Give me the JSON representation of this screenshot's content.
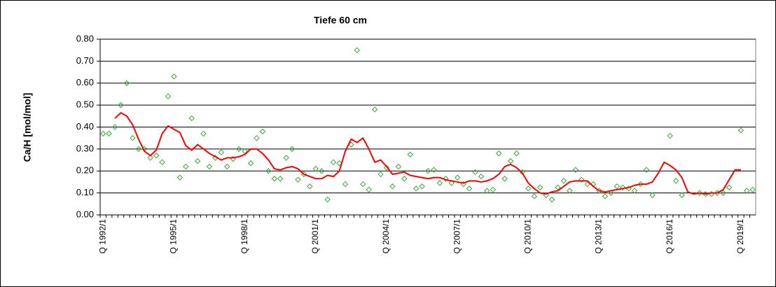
{
  "chart_data": {
    "type": "line",
    "title": "Tiefe  60 cm",
    "y_label": "Ca/H [mol/mol]",
    "categories": [
      "Q 1992/1",
      null,
      null,
      null,
      null,
      null,
      null,
      null,
      null,
      null,
      null,
      null,
      "Q 1995/1",
      null,
      null,
      null,
      null,
      null,
      null,
      null,
      null,
      null,
      null,
      null,
      "Q 1998/1",
      null,
      null,
      null,
      null,
      null,
      null,
      null,
      null,
      null,
      null,
      null,
      "Q 2001/1",
      null,
      null,
      null,
      null,
      null,
      null,
      null,
      null,
      null,
      null,
      null,
      "Q 2004/1",
      null,
      null,
      null,
      null,
      null,
      null,
      null,
      null,
      null,
      null,
      null,
      "Q 2007/1",
      null,
      null,
      null,
      null,
      null,
      null,
      null,
      null,
      null,
      null,
      null,
      "Q 2010/1",
      null,
      null,
      null,
      null,
      null,
      null,
      null,
      null,
      null,
      null,
      null,
      "Q 2013/1",
      null,
      null,
      null,
      null,
      null,
      null,
      null,
      null,
      null,
      null,
      null,
      "Q 2016/1",
      null,
      null,
      null,
      null,
      null,
      null,
      null,
      null,
      null,
      null,
      null,
      "Q 2019/1",
      null,
      null
    ],
    "series": [
      {
        "type": "scatter",
        "color": "#33aa33",
        "values": [
          0.37,
          0.37,
          0.4,
          0.5,
          0.6,
          0.35,
          0.3,
          0.3,
          0.26,
          0.27,
          0.24,
          0.54,
          0.63,
          0.17,
          0.22,
          0.44,
          0.245,
          0.37,
          0.22,
          0.26,
          0.285,
          0.22,
          0.255,
          0.3,
          0.29,
          0.235,
          0.35,
          0.38,
          0.2,
          0.165,
          0.165,
          0.26,
          0.3,
          0.16,
          0.185,
          0.13,
          0.21,
          0.2,
          0.07,
          0.24,
          0.235,
          0.14,
          0.32,
          0.75,
          0.14,
          0.115,
          0.48,
          0.185,
          0.215,
          0.13,
          0.22,
          0.165,
          0.275,
          0.12,
          0.13,
          0.2,
          0.205,
          0.145,
          0.165,
          0.145,
          0.17,
          0.14,
          0.12,
          0.195,
          0.175,
          0.11,
          0.115,
          0.28,
          0.165,
          0.245,
          0.28,
          0.195,
          0.12,
          0.085,
          0.125,
          0.09,
          0.07,
          0.125,
          0.155,
          0.11,
          0.205,
          0.16,
          0.14,
          0.14,
          0.11,
          0.085,
          0.1,
          0.13,
          0.125,
          0.12,
          0.11,
          0.14,
          0.205,
          0.09,
          null,
          null,
          0.36,
          0.155,
          0.09,
          null,
          null,
          0.1,
          0.095,
          0.095,
          0.1,
          0.1,
          0.125,
          null,
          0.385,
          0.11,
          0.115
        ]
      },
      {
        "type": "line",
        "color": "#ff0000",
        "values": [
          null,
          null,
          0.44,
          0.465,
          0.45,
          0.41,
          0.345,
          0.29,
          0.27,
          0.295,
          0.37,
          0.405,
          0.39,
          0.375,
          0.315,
          0.295,
          0.32,
          0.3,
          0.28,
          0.265,
          0.25,
          0.26,
          0.26,
          0.265,
          0.275,
          0.3,
          0.3,
          0.28,
          0.25,
          0.21,
          0.205,
          0.215,
          0.22,
          0.21,
          0.185,
          0.175,
          0.165,
          0.165,
          0.18,
          0.175,
          0.2,
          0.29,
          0.345,
          0.33,
          0.35,
          0.3,
          0.24,
          0.25,
          0.22,
          0.185,
          0.19,
          0.195,
          0.18,
          0.175,
          0.17,
          0.165,
          0.17,
          0.17,
          0.16,
          0.155,
          0.15,
          0.145,
          0.155,
          0.155,
          0.15,
          0.155,
          0.165,
          0.185,
          0.22,
          0.23,
          0.215,
          0.19,
          0.145,
          0.12,
          0.1,
          0.095,
          0.105,
          0.11,
          0.13,
          0.15,
          0.155,
          0.155,
          0.155,
          0.13,
          0.11,
          0.105,
          0.11,
          0.115,
          0.12,
          0.125,
          0.135,
          0.14,
          0.14,
          0.15,
          0.19,
          0.24,
          0.225,
          0.205,
          0.17,
          0.105,
          0.095,
          0.1,
          0.095,
          0.1,
          0.1,
          0.115,
          0.16,
          0.205,
          0.205,
          null,
          null
        ]
      }
    ],
    "ylim": [
      0,
      0.8
    ],
    "yticks": [
      {
        "value": 0,
        "label": "0.00"
      },
      {
        "value": 0.1,
        "label": "0.10"
      },
      {
        "value": 0.2,
        "label": "0.20"
      },
      {
        "value": 0.3,
        "label": "0.30"
      },
      {
        "value": 0.4,
        "label": "0.40"
      },
      {
        "value": 0.5,
        "label": "0.50"
      },
      {
        "value": 0.6,
        "label": "0.60"
      },
      {
        "value": 0.7,
        "label": "0.70"
      },
      {
        "value": 0.8,
        "label": "0.80"
      }
    ],
    "grid": true
  }
}
